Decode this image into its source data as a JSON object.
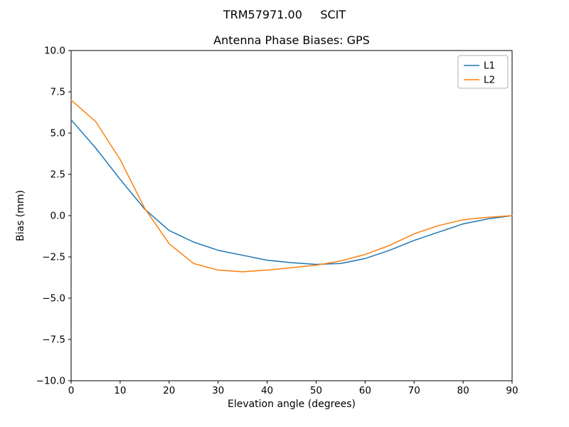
{
  "header": {
    "suptitle": "TRM57971.00     SCIT",
    "title": "Antenna Phase Biases: GPS"
  },
  "chart_data": {
    "type": "line",
    "suptitle": "TRM57971.00     SCIT",
    "title": "Antenna Phase Biases: GPS",
    "xlabel": "Elevation angle (degrees)",
    "ylabel": "Bias (mm)",
    "xlim": [
      0,
      90
    ],
    "ylim": [
      -10,
      10
    ],
    "grid": false,
    "xticks": [
      0,
      10,
      20,
      30,
      40,
      50,
      60,
      70,
      80,
      90
    ],
    "xtick_labels": [
      "0",
      "10",
      "20",
      "30",
      "40",
      "50",
      "60",
      "70",
      "80",
      "90"
    ],
    "yticks": [
      -10.0,
      -7.5,
      -5.0,
      -2.5,
      0.0,
      2.5,
      5.0,
      7.5,
      10.0
    ],
    "ytick_labels": [
      "−10.0",
      "−7.5",
      "−5.0",
      "−2.5",
      "0.0",
      "2.5",
      "5.0",
      "7.5",
      "10.0"
    ],
    "legend": {
      "position": "upper right",
      "entries": [
        "L1",
        "L2"
      ]
    },
    "x": [
      0,
      5,
      10,
      15,
      20,
      25,
      30,
      35,
      40,
      45,
      50,
      55,
      60,
      65,
      70,
      75,
      80,
      85,
      90
    ],
    "series": [
      {
        "name": "L1",
        "color": "#1f77b4",
        "values": [
          5.8,
          4.1,
          2.2,
          0.4,
          -0.9,
          -1.6,
          -2.1,
          -2.4,
          -2.7,
          -2.85,
          -2.95,
          -2.9,
          -2.6,
          -2.1,
          -1.5,
          -1.0,
          -0.5,
          -0.2,
          0.0
        ]
      },
      {
        "name": "L2",
        "color": "#ff7f0e",
        "values": [
          7.0,
          5.7,
          3.4,
          0.45,
          -1.7,
          -2.9,
          -3.3,
          -3.4,
          -3.3,
          -3.15,
          -3.0,
          -2.75,
          -2.35,
          -1.8,
          -1.1,
          -0.6,
          -0.25,
          -0.1,
          0.0
        ]
      }
    ]
  }
}
